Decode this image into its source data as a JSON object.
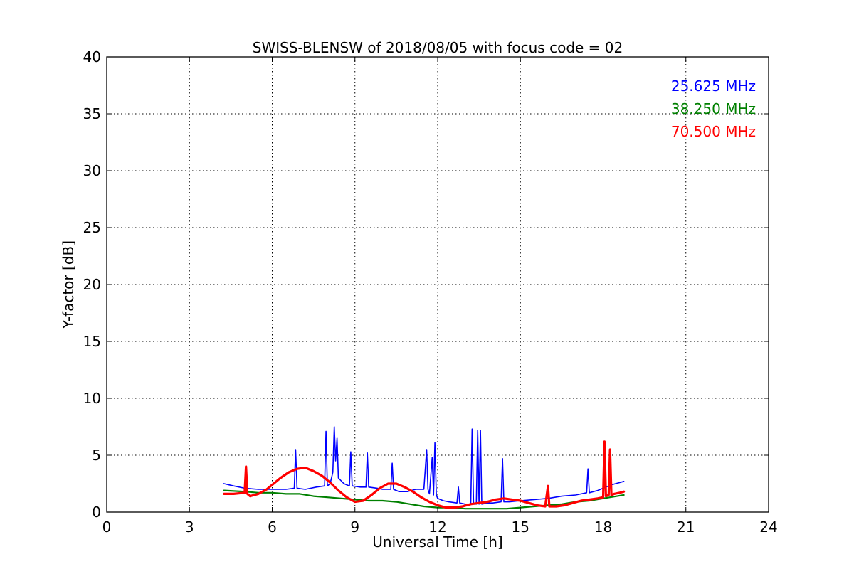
{
  "chart_data": {
    "type": "line",
    "title": "SWISS-BLENSW of 2018/08/05 with focus code = 02",
    "xlabel": "Universal Time [h]",
    "ylabel": "Y-factor [dB]",
    "xlim": [
      0,
      24
    ],
    "ylim": [
      0,
      40
    ],
    "xticks": [
      0,
      3,
      6,
      9,
      12,
      15,
      18,
      21,
      24
    ],
    "yticks": [
      0,
      5,
      10,
      15,
      20,
      25,
      30,
      35,
      40
    ],
    "grid": true,
    "legend_position": "top-right",
    "series": [
      {
        "name": "25.625 MHz",
        "color": "#0000ff",
        "x": [
          4.25,
          4.6,
          5.0,
          5.5,
          6.0,
          6.5,
          6.8,
          6.85,
          6.9,
          7.2,
          7.6,
          7.9,
          7.95,
          8.0,
          8.1,
          8.2,
          8.25,
          8.3,
          8.35,
          8.4,
          8.6,
          8.8,
          8.85,
          8.9,
          9.2,
          9.4,
          9.45,
          9.5,
          9.8,
          10.0,
          10.3,
          10.35,
          10.4,
          10.6,
          10.9,
          11.2,
          11.5,
          11.6,
          11.65,
          11.7,
          11.8,
          11.85,
          11.9,
          11.95,
          12.0,
          12.2,
          12.4,
          12.7,
          12.75,
          12.8,
          13.0,
          13.2,
          13.25,
          13.3,
          13.4,
          13.45,
          13.5,
          13.55,
          13.6,
          13.8,
          14.0,
          14.3,
          14.35,
          14.4,
          14.6,
          15.0,
          15.5,
          16.0,
          16.5,
          17.0,
          17.4,
          17.45,
          17.5,
          17.8,
          18.0,
          18.3,
          18.75
        ],
        "y": [
          2.5,
          2.3,
          2.1,
          2.0,
          2.0,
          2.0,
          2.1,
          5.5,
          2.1,
          2.0,
          2.2,
          2.3,
          7.1,
          2.3,
          2.5,
          3.5,
          7.5,
          4.5,
          6.5,
          3.0,
          2.5,
          2.3,
          5.3,
          2.3,
          2.2,
          2.2,
          5.2,
          2.2,
          2.1,
          2.0,
          2.0,
          4.3,
          2.0,
          1.8,
          1.8,
          2.0,
          2.0,
          5.5,
          2.0,
          1.6,
          4.8,
          1.5,
          6.1,
          1.5,
          1.2,
          1.0,
          0.9,
          0.8,
          2.2,
          0.8,
          0.7,
          0.7,
          7.3,
          0.7,
          0.7,
          7.2,
          0.7,
          7.2,
          0.7,
          0.8,
          0.8,
          0.9,
          4.7,
          0.9,
          0.9,
          1.0,
          1.1,
          1.2,
          1.4,
          1.5,
          1.7,
          3.8,
          1.7,
          1.9,
          2.1,
          2.4,
          2.7
        ]
      },
      {
        "name": "38.250 MHz",
        "color": "#008000",
        "x": [
          4.25,
          5.0,
          5.5,
          6.0,
          6.5,
          7.0,
          7.5,
          8.0,
          8.5,
          9.0,
          9.5,
          10.0,
          10.5,
          11.0,
          11.5,
          12.0,
          12.5,
          13.0,
          13.5,
          14.0,
          14.5,
          15.0,
          15.5,
          16.0,
          16.5,
          17.0,
          17.5,
          18.0,
          18.5,
          18.75
        ],
        "y": [
          1.9,
          1.8,
          1.7,
          1.7,
          1.6,
          1.6,
          1.4,
          1.3,
          1.2,
          1.1,
          1.0,
          1.0,
          0.9,
          0.7,
          0.5,
          0.4,
          0.4,
          0.3,
          0.3,
          0.3,
          0.3,
          0.4,
          0.5,
          0.6,
          0.7,
          0.9,
          1.0,
          1.2,
          1.4,
          1.5
        ]
      },
      {
        "name": "70.500 MHz",
        "color": "#ff0000",
        "x": [
          4.25,
          4.6,
          5.0,
          5.05,
          5.1,
          5.2,
          5.5,
          5.8,
          6.0,
          6.3,
          6.6,
          6.9,
          7.2,
          7.5,
          7.8,
          8.1,
          8.4,
          8.7,
          9.0,
          9.3,
          9.6,
          9.9,
          10.2,
          10.5,
          10.8,
          11.1,
          11.4,
          11.7,
          12.0,
          12.3,
          12.6,
          12.9,
          13.2,
          13.5,
          13.8,
          14.1,
          14.4,
          14.7,
          15.0,
          15.3,
          15.6,
          15.9,
          16.0,
          16.05,
          16.1,
          16.3,
          16.6,
          16.9,
          17.2,
          17.5,
          17.8,
          18.0,
          18.05,
          18.1,
          18.2,
          18.25,
          18.3,
          18.4,
          18.6,
          18.75
        ],
        "y": [
          1.6,
          1.6,
          1.7,
          4.0,
          1.6,
          1.4,
          1.6,
          2.0,
          2.4,
          3.0,
          3.5,
          3.8,
          3.9,
          3.6,
          3.2,
          2.6,
          1.9,
          1.3,
          0.9,
          1.0,
          1.5,
          2.1,
          2.5,
          2.5,
          2.2,
          1.8,
          1.3,
          0.9,
          0.6,
          0.4,
          0.4,
          0.5,
          0.7,
          0.8,
          0.9,
          1.1,
          1.2,
          1.1,
          1.0,
          0.8,
          0.6,
          0.5,
          2.3,
          0.5,
          0.5,
          0.5,
          0.6,
          0.8,
          1.0,
          1.1,
          1.2,
          1.3,
          6.2,
          1.4,
          1.5,
          5.5,
          1.5,
          1.6,
          1.7,
          1.8
        ]
      }
    ]
  }
}
